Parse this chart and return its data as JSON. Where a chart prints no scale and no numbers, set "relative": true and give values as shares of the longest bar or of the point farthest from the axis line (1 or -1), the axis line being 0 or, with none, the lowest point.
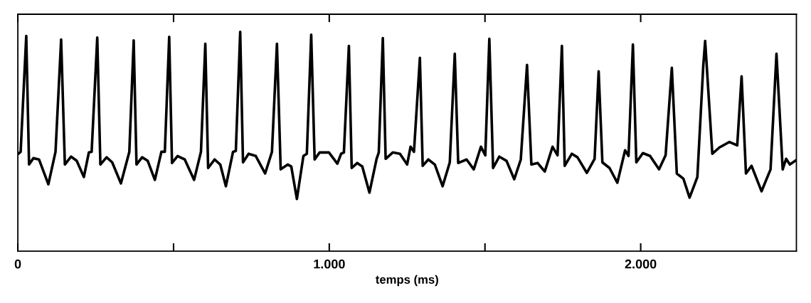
{
  "chart_data": {
    "type": "line",
    "xlabel": "temps (ms)",
    "relative": true,
    "color": "#000000",
    "grid": false,
    "xlim": [
      0,
      2500
    ],
    "xticks": [
      0,
      {
        "value": 500,
        "label": null
      },
      {
        "value": 1000,
        "label": "1.000"
      },
      {
        "value": 1500,
        "label": null
      },
      {
        "value": 2000,
        "label": "2.000"
      }
    ],
    "x": [
      2,
      9,
      27,
      36,
      50,
      68,
      98,
      121,
      139,
      151,
      171,
      189,
      212,
      228,
      237,
      255,
      265,
      285,
      303,
      331,
      358,
      372,
      381,
      399,
      417,
      440,
      461,
      472,
      486,
      495,
      513,
      536,
      566,
      588,
      602,
      611,
      632,
      650,
      668,
      691,
      700,
      714,
      723,
      741,
      764,
      794,
      816,
      832,
      844,
      867,
      878,
      896,
      917,
      928,
      942,
      953,
      969,
      999,
      1026,
      1038,
      1047,
      1063,
      1072,
      1090,
      1106,
      1129,
      1152,
      1159,
      1172,
      1181,
      1204,
      1227,
      1250,
      1261,
      1272,
      1291,
      1300,
      1318,
      1339,
      1364,
      1387,
      1403,
      1414,
      1441,
      1464,
      1487,
      1501,
      1514,
      1526,
      1546,
      1569,
      1594,
      1615,
      1635,
      1649,
      1669,
      1692,
      1717,
      1733,
      1747,
      1756,
      1779,
      1797,
      1827,
      1852,
      1865,
      1877,
      1900,
      1925,
      1950,
      1961,
      1975,
      1986,
      2007,
      2030,
      2059,
      2080,
      2100,
      2116,
      2137,
      2157,
      2182,
      2201,
      2207,
      2230,
      2253,
      2285,
      2310,
      2324,
      2338,
      2356,
      2388,
      2417,
      2436,
      2456,
      2467,
      2479,
      2499
    ],
    "values": [
      0.444,
      0.453,
      0.981,
      0.395,
      0.424,
      0.418,
      0.305,
      0.453,
      0.965,
      0.395,
      0.431,
      0.412,
      0.338,
      0.45,
      0.453,
      0.974,
      0.395,
      0.428,
      0.405,
      0.309,
      0.453,
      0.961,
      0.395,
      0.428,
      0.412,
      0.325,
      0.453,
      0.453,
      0.977,
      0.402,
      0.434,
      0.418,
      0.325,
      0.453,
      0.945,
      0.379,
      0.418,
      0.395,
      0.296,
      0.453,
      0.457,
      1.0,
      0.405,
      0.444,
      0.434,
      0.354,
      0.453,
      0.945,
      0.373,
      0.395,
      0.386,
      0.238,
      0.434,
      0.444,
      0.987,
      0.418,
      0.45,
      0.45,
      0.399,
      0.444,
      0.45,
      0.936,
      0.379,
      0.402,
      0.386,
      0.267,
      0.421,
      0.45,
      0.971,
      0.421,
      0.45,
      0.444,
      0.395,
      0.476,
      0.453,
      0.881,
      0.389,
      0.418,
      0.395,
      0.296,
      0.405,
      0.9,
      0.402,
      0.418,
      0.373,
      0.476,
      0.437,
      0.968,
      0.379,
      0.431,
      0.412,
      0.328,
      0.418,
      0.849,
      0.395,
      0.402,
      0.363,
      0.476,
      0.437,
      0.936,
      0.389,
      0.444,
      0.428,
      0.357,
      0.421,
      0.82,
      0.405,
      0.379,
      0.312,
      0.46,
      0.434,
      0.942,
      0.405,
      0.447,
      0.434,
      0.373,
      0.437,
      0.836,
      0.354,
      0.331,
      0.244,
      0.338,
      0.846,
      0.958,
      0.444,
      0.473,
      0.498,
      0.482,
      0.797,
      0.354,
      0.389,
      0.273,
      0.373,
      0.9,
      0.373,
      0.421,
      0.395,
      0.415
    ]
  }
}
